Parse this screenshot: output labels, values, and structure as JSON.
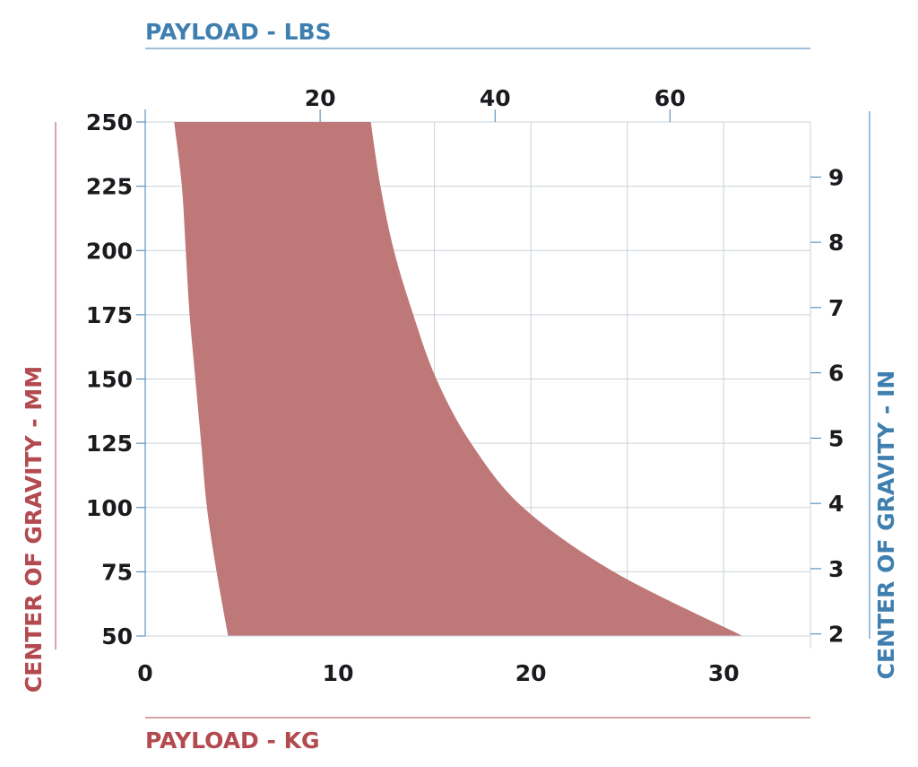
{
  "colors": {
    "region": "#bf7878",
    "kg_accent": "#b24a4f",
    "lbs_accent": "#3f7fb0",
    "grid": "#ccd3da",
    "text": "#1b1b1f"
  },
  "chart_data": {
    "type": "area",
    "grid": true,
    "axes": {
      "x_bottom": {
        "label": "PAYLOAD - KG",
        "range": [
          0,
          34.5
        ],
        "ticks": [
          0,
          10,
          20,
          30
        ],
        "gridlines": [
          0,
          5,
          10,
          15,
          20,
          25,
          30,
          34.5
        ]
      },
      "x_top": {
        "label": "PAYLOAD - LBS",
        "ticks": [
          20,
          40,
          60
        ]
      },
      "y_left": {
        "label": "CENTER OF GRAVITY - MM",
        "range": [
          50,
          250
        ],
        "ticks": [
          50,
          75,
          100,
          125,
          150,
          175,
          200,
          225,
          250
        ]
      },
      "y_right": {
        "label": "CENTER OF GRAVITY - IN",
        "ticks": [
          2,
          3,
          4,
          5,
          6,
          7,
          8,
          9
        ]
      }
    },
    "region": {
      "lower_boundary": {
        "x": [
          4.3,
          3.7,
          3.2,
          2.9,
          2.6,
          2.3,
          2.1,
          1.9,
          1.5
        ],
        "y": [
          50,
          75,
          100,
          125,
          150,
          175,
          200,
          225,
          250
        ]
      },
      "upper_boundary": {
        "x": [
          31.0,
          24.3,
          19.6,
          16.9,
          15.1,
          13.9,
          12.9,
          12.2,
          11.7
        ],
        "y": [
          50,
          75,
          100,
          125,
          150,
          175,
          200,
          225,
          250
        ]
      }
    }
  }
}
